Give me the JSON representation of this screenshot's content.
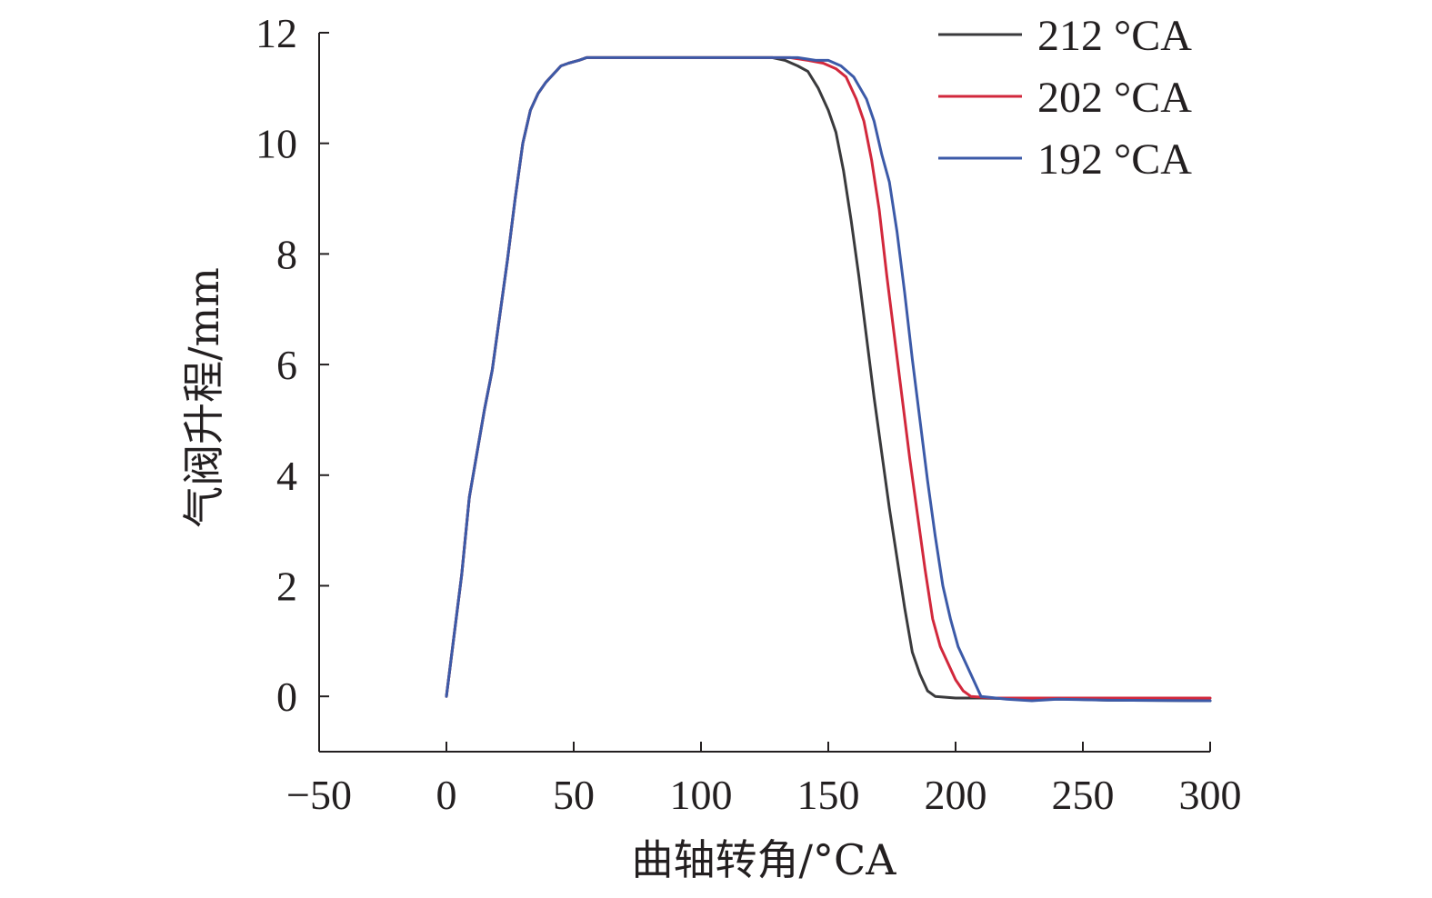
{
  "chart_data": {
    "type": "line",
    "title": "",
    "xlabel": "曲轴转角/°CA",
    "ylabel": "气阀升程/mm",
    "xlim": [
      -50,
      300
    ],
    "ylim": [
      -1,
      12
    ],
    "x_ticks": [
      -50,
      0,
      50,
      100,
      150,
      200,
      250,
      300
    ],
    "x_tick_labels": [
      "−50",
      "0",
      "50",
      "100",
      "150",
      "200",
      "250",
      "300"
    ],
    "y_ticks": [
      0,
      2,
      4,
      6,
      8,
      10,
      12
    ],
    "y_tick_labels": [
      "0",
      "2",
      "4",
      "6",
      "8",
      "10",
      "12"
    ],
    "grid": false,
    "legend_position": "top-right",
    "series": [
      {
        "name": "212 °CA",
        "color": "#3a3a3c",
        "points": [
          [
            0,
            0
          ],
          [
            3,
            1.1
          ],
          [
            6,
            2.2
          ],
          [
            9,
            3.6
          ],
          [
            12,
            4.4
          ],
          [
            15,
            5.2
          ],
          [
            18,
            5.9
          ],
          [
            21,
            6.9
          ],
          [
            24,
            7.9
          ],
          [
            27,
            9.0
          ],
          [
            30,
            10.0
          ],
          [
            33,
            10.6
          ],
          [
            36,
            10.9
          ],
          [
            39,
            11.1
          ],
          [
            42,
            11.25
          ],
          [
            45,
            11.4
          ],
          [
            48,
            11.45
          ],
          [
            52,
            11.5
          ],
          [
            55,
            11.55
          ],
          [
            60,
            11.55
          ],
          [
            80,
            11.55
          ],
          [
            100,
            11.55
          ],
          [
            120,
            11.55
          ],
          [
            128,
            11.55
          ],
          [
            133,
            11.5
          ],
          [
            138,
            11.4
          ],
          [
            142,
            11.3
          ],
          [
            146,
            11.0
          ],
          [
            150,
            10.6
          ],
          [
            153,
            10.2
          ],
          [
            156,
            9.5
          ],
          [
            159,
            8.6
          ],
          [
            162,
            7.6
          ],
          [
            165,
            6.5
          ],
          [
            168,
            5.4
          ],
          [
            171,
            4.4
          ],
          [
            174,
            3.4
          ],
          [
            177,
            2.5
          ],
          [
            180,
            1.6
          ],
          [
            183,
            0.8
          ],
          [
            186,
            0.4
          ],
          [
            189,
            0.1
          ],
          [
            192,
            0.0
          ],
          [
            200,
            -0.03
          ],
          [
            210,
            -0.03
          ],
          [
            230,
            -0.05
          ],
          [
            245,
            -0.05
          ],
          [
            260,
            -0.07
          ],
          [
            300,
            -0.08
          ]
        ]
      },
      {
        "name": "202 °CA",
        "color": "#d2283c",
        "points": [
          [
            0,
            0
          ],
          [
            3,
            1.1
          ],
          [
            6,
            2.2
          ],
          [
            9,
            3.6
          ],
          [
            12,
            4.4
          ],
          [
            15,
            5.2
          ],
          [
            18,
            5.9
          ],
          [
            21,
            6.9
          ],
          [
            24,
            7.9
          ],
          [
            27,
            9.0
          ],
          [
            30,
            10.0
          ],
          [
            33,
            10.6
          ],
          [
            36,
            10.9
          ],
          [
            39,
            11.1
          ],
          [
            42,
            11.25
          ],
          [
            45,
            11.4
          ],
          [
            48,
            11.45
          ],
          [
            52,
            11.5
          ],
          [
            55,
            11.55
          ],
          [
            60,
            11.55
          ],
          [
            80,
            11.55
          ],
          [
            100,
            11.55
          ],
          [
            120,
            11.55
          ],
          [
            135,
            11.55
          ],
          [
            142,
            11.5
          ],
          [
            148,
            11.45
          ],
          [
            153,
            11.35
          ],
          [
            157,
            11.2
          ],
          [
            161,
            10.8
          ],
          [
            164,
            10.4
          ],
          [
            167,
            9.7
          ],
          [
            170,
            8.8
          ],
          [
            173,
            7.6
          ],
          [
            176,
            6.5
          ],
          [
            179,
            5.4
          ],
          [
            182,
            4.3
          ],
          [
            185,
            3.3
          ],
          [
            188,
            2.3
          ],
          [
            191,
            1.4
          ],
          [
            194,
            0.9
          ],
          [
            197,
            0.6
          ],
          [
            200,
            0.3
          ],
          [
            203,
            0.1
          ],
          [
            206,
            0.0
          ],
          [
            215,
            -0.03
          ],
          [
            230,
            -0.03
          ],
          [
            260,
            -0.03
          ],
          [
            300,
            -0.03
          ]
        ]
      },
      {
        "name": "192 °CA",
        "color": "#3c5aa8",
        "points": [
          [
            0,
            0
          ],
          [
            3,
            1.1
          ],
          [
            6,
            2.2
          ],
          [
            9,
            3.6
          ],
          [
            12,
            4.4
          ],
          [
            15,
            5.2
          ],
          [
            18,
            5.9
          ],
          [
            21,
            6.9
          ],
          [
            24,
            7.9
          ],
          [
            27,
            9.0
          ],
          [
            30,
            10.0
          ],
          [
            33,
            10.6
          ],
          [
            36,
            10.9
          ],
          [
            39,
            11.1
          ],
          [
            42,
            11.25
          ],
          [
            45,
            11.4
          ],
          [
            48,
            11.45
          ],
          [
            52,
            11.5
          ],
          [
            55,
            11.55
          ],
          [
            60,
            11.55
          ],
          [
            80,
            11.55
          ],
          [
            100,
            11.55
          ],
          [
            120,
            11.55
          ],
          [
            138,
            11.55
          ],
          [
            145,
            11.5
          ],
          [
            150,
            11.5
          ],
          [
            155,
            11.4
          ],
          [
            160,
            11.2
          ],
          [
            165,
            10.8
          ],
          [
            168,
            10.4
          ],
          [
            171,
            9.8
          ],
          [
            174,
            9.3
          ],
          [
            177,
            8.4
          ],
          [
            180,
            7.3
          ],
          [
            183,
            6.1
          ],
          [
            186,
            5.0
          ],
          [
            189,
            3.9
          ],
          [
            192,
            2.9
          ],
          [
            195,
            2.0
          ],
          [
            198,
            1.4
          ],
          [
            201,
            0.9
          ],
          [
            204,
            0.6
          ],
          [
            207,
            0.3
          ],
          [
            210,
            0.0
          ],
          [
            220,
            -0.05
          ],
          [
            230,
            -0.08
          ],
          [
            240,
            -0.05
          ],
          [
            260,
            -0.07
          ],
          [
            300,
            -0.08
          ]
        ]
      }
    ]
  }
}
